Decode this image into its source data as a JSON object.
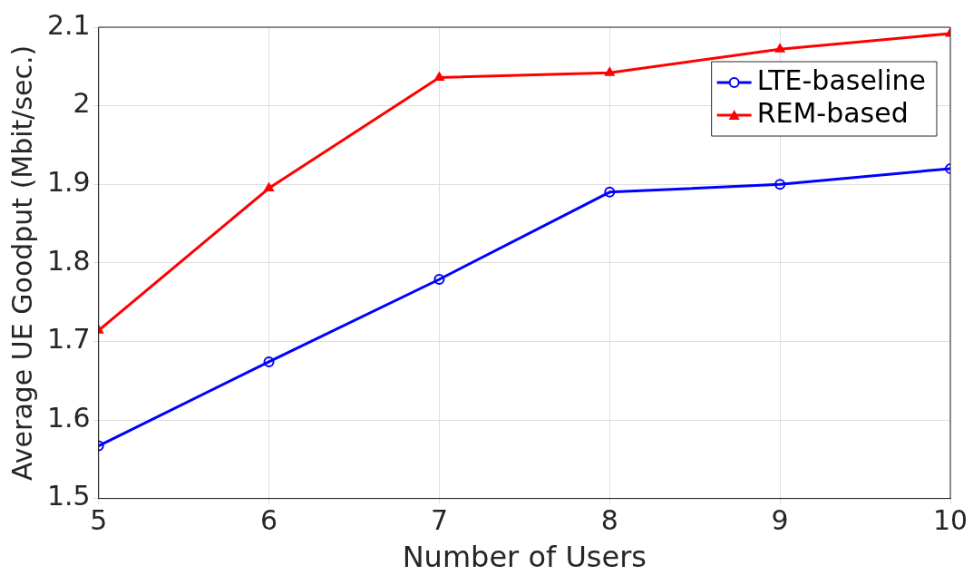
{
  "chart_data": {
    "type": "line",
    "xlabel": "Number of Users",
    "ylabel": "Average UE Goodput (Mbit/sec.)",
    "x": [
      5,
      6,
      7,
      8,
      9,
      10
    ],
    "series": [
      {
        "name": "LTE-baseline",
        "color": "#0000ff",
        "marker": "circle",
        "values": [
          1.567,
          1.674,
          1.779,
          1.89,
          1.9,
          1.92
        ]
      },
      {
        "name": "REM-based",
        "color": "#ff0000",
        "marker": "triangle",
        "values": [
          1.714,
          1.895,
          2.036,
          2.042,
          2.072,
          2.092
        ]
      }
    ],
    "xlim": [
      5,
      10
    ],
    "xticks": [
      5,
      6,
      7,
      8,
      9,
      10
    ],
    "ylim": [
      1.5,
      2.1
    ],
    "yticks": [
      1.5,
      1.6,
      1.7,
      1.8,
      1.9,
      2,
      2.1
    ],
    "grid": true,
    "legend": "top right",
    "line_style": "solid"
  }
}
